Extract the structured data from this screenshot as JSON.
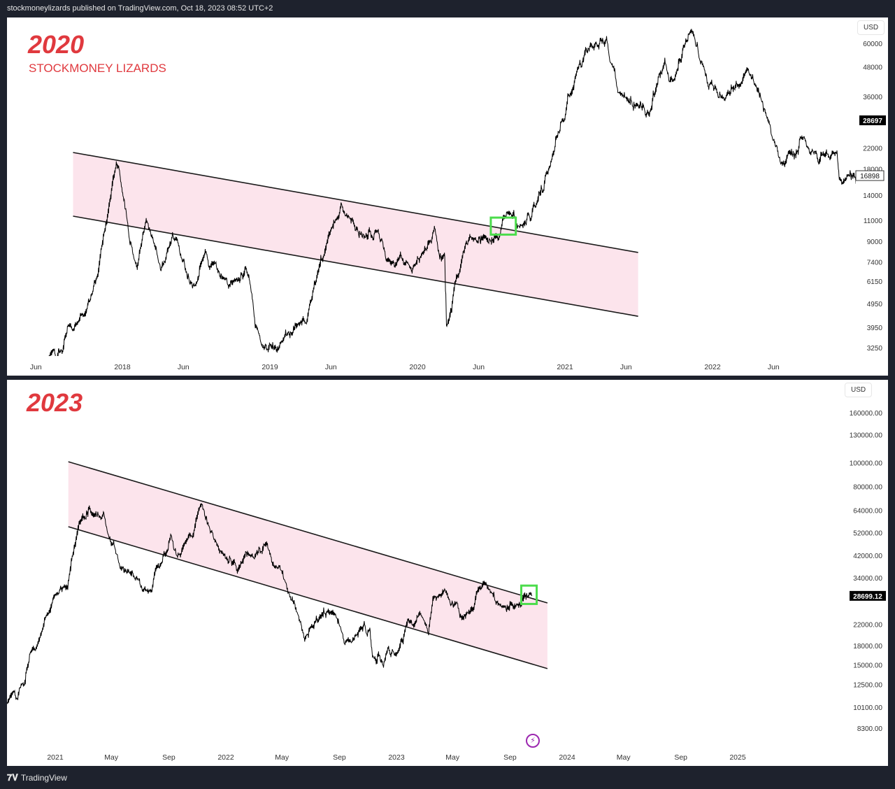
{
  "header": {
    "text": "stockmoneylizards published on TradingView.com, Oct 18, 2023 08:52 UTC+2"
  },
  "footer": {
    "brand": "TradingView",
    "logo_icon": "tradingview-logo-icon"
  },
  "colors": {
    "title": "#e0393e",
    "channel_fill": "#fce4ec",
    "channel_line": "#1a1a1a",
    "price_line": "#000000",
    "highlight_box": "#4cdc4c",
    "alert_icon": "#9c27b0"
  },
  "chart_data": [
    {
      "type": "line",
      "title": "2020",
      "subtitle": "STOCKMONEY LIZARDS",
      "currency": "USD",
      "scale": "log",
      "ylim": [
        3000,
        70000
      ],
      "xlim": [
        "2017-05",
        "2023-01"
      ],
      "grid": false,
      "last_price_label": "28697",
      "marker_price_label": "16898",
      "x_ticks": [
        {
          "label": "Jun",
          "date": "2017-06"
        },
        {
          "label": "2018",
          "date": "2018-01"
        },
        {
          "label": "Jun",
          "date": "2018-06"
        },
        {
          "label": "2019",
          "date": "2019-01"
        },
        {
          "label": "Jun",
          "date": "2019-06"
        },
        {
          "label": "2020",
          "date": "2020-01"
        },
        {
          "label": "Jun",
          "date": "2020-06"
        },
        {
          "label": "2021",
          "date": "2021-01"
        },
        {
          "label": "Jun",
          "date": "2021-06"
        },
        {
          "label": "2022",
          "date": "2022-01"
        },
        {
          "label": "Jun",
          "date": "2022-06"
        }
      ],
      "y_ticks": [
        "60000",
        "48000",
        "36000",
        "22000",
        "18000",
        "14000",
        "11000",
        "9000",
        "7400",
        "6150",
        "4950",
        "3950",
        "3250"
      ],
      "channel": {
        "upper": [
          [
            "2017-09",
            21090
          ],
          [
            "2021-07",
            8090
          ]
        ],
        "lower": [
          [
            "2017-09",
            11460
          ],
          [
            "2021-07",
            4390
          ]
        ]
      },
      "highlight": {
        "from": "2020-07",
        "to": "2020-09",
        "low": 9600,
        "high": 11300
      },
      "series": [
        {
          "points": [
            [
              "2017-07",
              2900
            ],
            [
              "2017-10",
              4500
            ],
            [
              "2017-11",
              6500
            ],
            [
              "2017-12-17",
              19000
            ],
            [
              "2018-02-06",
              7000
            ],
            [
              "2018-03-01",
              11000
            ],
            [
              "2018-04-06",
              6800
            ],
            [
              "2018-05-05",
              9700
            ],
            [
              "2018-06-29",
              5900
            ],
            [
              "2018-07-25",
              8200
            ],
            [
              "2018-09-10",
              6300
            ],
            [
              "2018-11-10",
              6400
            ],
            [
              "2018-11-25",
              4000
            ],
            [
              "2018-12-15",
              3250
            ],
            [
              "2019-02-01",
              3450
            ],
            [
              "2019-04-01",
              4100
            ],
            [
              "2019-05-15",
              7900
            ],
            [
              "2019-06-26",
              13000
            ],
            [
              "2019-08-01",
              10000
            ],
            [
              "2019-09-20",
              10000
            ],
            [
              "2019-10-25",
              7400
            ],
            [
              "2019-11-20",
              8000
            ],
            [
              "2019-12-18",
              6700
            ],
            [
              "2020-02-12",
              10300
            ],
            [
              "2020-03-08",
              7900
            ],
            [
              "2020-03-13",
              4000
            ],
            [
              "2020-04-15",
              6800
            ],
            [
              "2020-05-10",
              9500
            ],
            [
              "2020-06-15",
              9400
            ],
            [
              "2020-07-20",
              9200
            ],
            [
              "2020-08-15",
              11800
            ],
            [
              "2020-09-10",
              10300
            ],
            [
              "2020-10-20",
              12500
            ],
            [
              "2020-11-25",
              18500
            ],
            [
              "2020-12-31",
              29000
            ],
            [
              "2021-02-21",
              57000
            ],
            [
              "2021-04-14",
              63000
            ],
            [
              "2021-05-20",
              37000
            ],
            [
              "2021-07-20",
              30000
            ],
            [
              "2021-09-05",
              51000
            ],
            [
              "2021-09-25",
              42000
            ],
            [
              "2021-11-10",
              68000
            ],
            [
              "2021-12-10",
              48000
            ],
            [
              "2022-01-25",
              36000
            ],
            [
              "2022-03-29",
              47000
            ],
            [
              "2022-05-15",
              29500
            ],
            [
              "2022-06-18",
              19000
            ],
            [
              "2022-08-14",
              24500
            ],
            [
              "2022-09-20",
              19000
            ],
            [
              "2022-11-05",
              21000
            ],
            [
              "2022-11-10",
              16500
            ],
            [
              "2022-12-31",
              16898
            ]
          ]
        }
      ]
    },
    {
      "type": "line",
      "title": "2023",
      "currency": "USD",
      "scale": "log",
      "ylim": [
        7500,
        190000
      ],
      "xlim": [
        "2020-09",
        "2025-06"
      ],
      "grid": false,
      "last_price_label": "28699.12",
      "x_ticks": [
        {
          "label": "2021",
          "date": "2021-01"
        },
        {
          "label": "May",
          "date": "2021-05"
        },
        {
          "label": "Sep",
          "date": "2021-09"
        },
        {
          "label": "2022",
          "date": "2022-01"
        },
        {
          "label": "May",
          "date": "2022-05"
        },
        {
          "label": "Sep",
          "date": "2022-09"
        },
        {
          "label": "2023",
          "date": "2023-01"
        },
        {
          "label": "May",
          "date": "2023-05"
        },
        {
          "label": "Sep",
          "date": "2023-09"
        },
        {
          "label": "2024",
          "date": "2024-01"
        },
        {
          "label": "May",
          "date": "2024-05"
        },
        {
          "label": "Sep",
          "date": "2024-09"
        },
        {
          "label": "2025",
          "date": "2025-01"
        }
      ],
      "y_ticks": [
        "160000.00",
        "130000.00",
        "100000.00",
        "80000.00",
        "64000.00",
        "52000.00",
        "42000.00",
        "34000.00",
        "22000.00",
        "18000.00",
        "15000.00",
        "12500.00",
        "10100.00",
        "8300.00"
      ],
      "channel": {
        "upper": [
          [
            "2021-01-29",
            101000
          ],
          [
            "2023-11-20",
            26850
          ]
        ],
        "lower": [
          [
            "2021-01-29",
            54900
          ],
          [
            "2023-11-20",
            14500
          ]
        ]
      },
      "highlight": {
        "from": "2023-09-25",
        "to": "2023-10-28",
        "low": 26600,
        "high": 31600
      },
      "series": [
        {
          "points": [
            [
              "2020-09-20",
              10500
            ],
            [
              "2020-10-20",
              12500
            ],
            [
              "2020-11-25",
              18500
            ],
            [
              "2020-12-31",
              29000
            ],
            [
              "2021-01-27",
              31000
            ],
            [
              "2021-02-21",
              57000
            ],
            [
              "2021-04-14",
              63000
            ],
            [
              "2021-05-20",
              37000
            ],
            [
              "2021-07-20",
              30000
            ],
            [
              "2021-09-05",
              51000
            ],
            [
              "2021-09-25",
              42000
            ],
            [
              "2021-11-10",
              68000
            ],
            [
              "2021-12-10",
              48000
            ],
            [
              "2022-01-25",
              36000
            ],
            [
              "2022-03-29",
              47000
            ],
            [
              "2022-05-15",
              29500
            ],
            [
              "2022-06-18",
              19000
            ],
            [
              "2022-08-14",
              24500
            ],
            [
              "2022-09-20",
              19000
            ],
            [
              "2022-11-05",
              21000
            ],
            [
              "2022-11-10",
              16500
            ],
            [
              "2022-12-31",
              16600
            ],
            [
              "2023-01-25",
              23000
            ],
            [
              "2023-02-20",
              24500
            ],
            [
              "2023-03-10",
              20000
            ],
            [
              "2023-03-20",
              28000
            ],
            [
              "2023-04-14",
              30500
            ],
            [
              "2023-05-10",
              27000
            ],
            [
              "2023-06-15",
              25500
            ],
            [
              "2023-06-25",
              30500
            ],
            [
              "2023-07-20",
              30000
            ],
            [
              "2023-08-18",
              26000
            ],
            [
              "2023-09-15",
              26500
            ],
            [
              "2023-10-18",
              28699.12
            ]
          ]
        }
      ]
    }
  ]
}
